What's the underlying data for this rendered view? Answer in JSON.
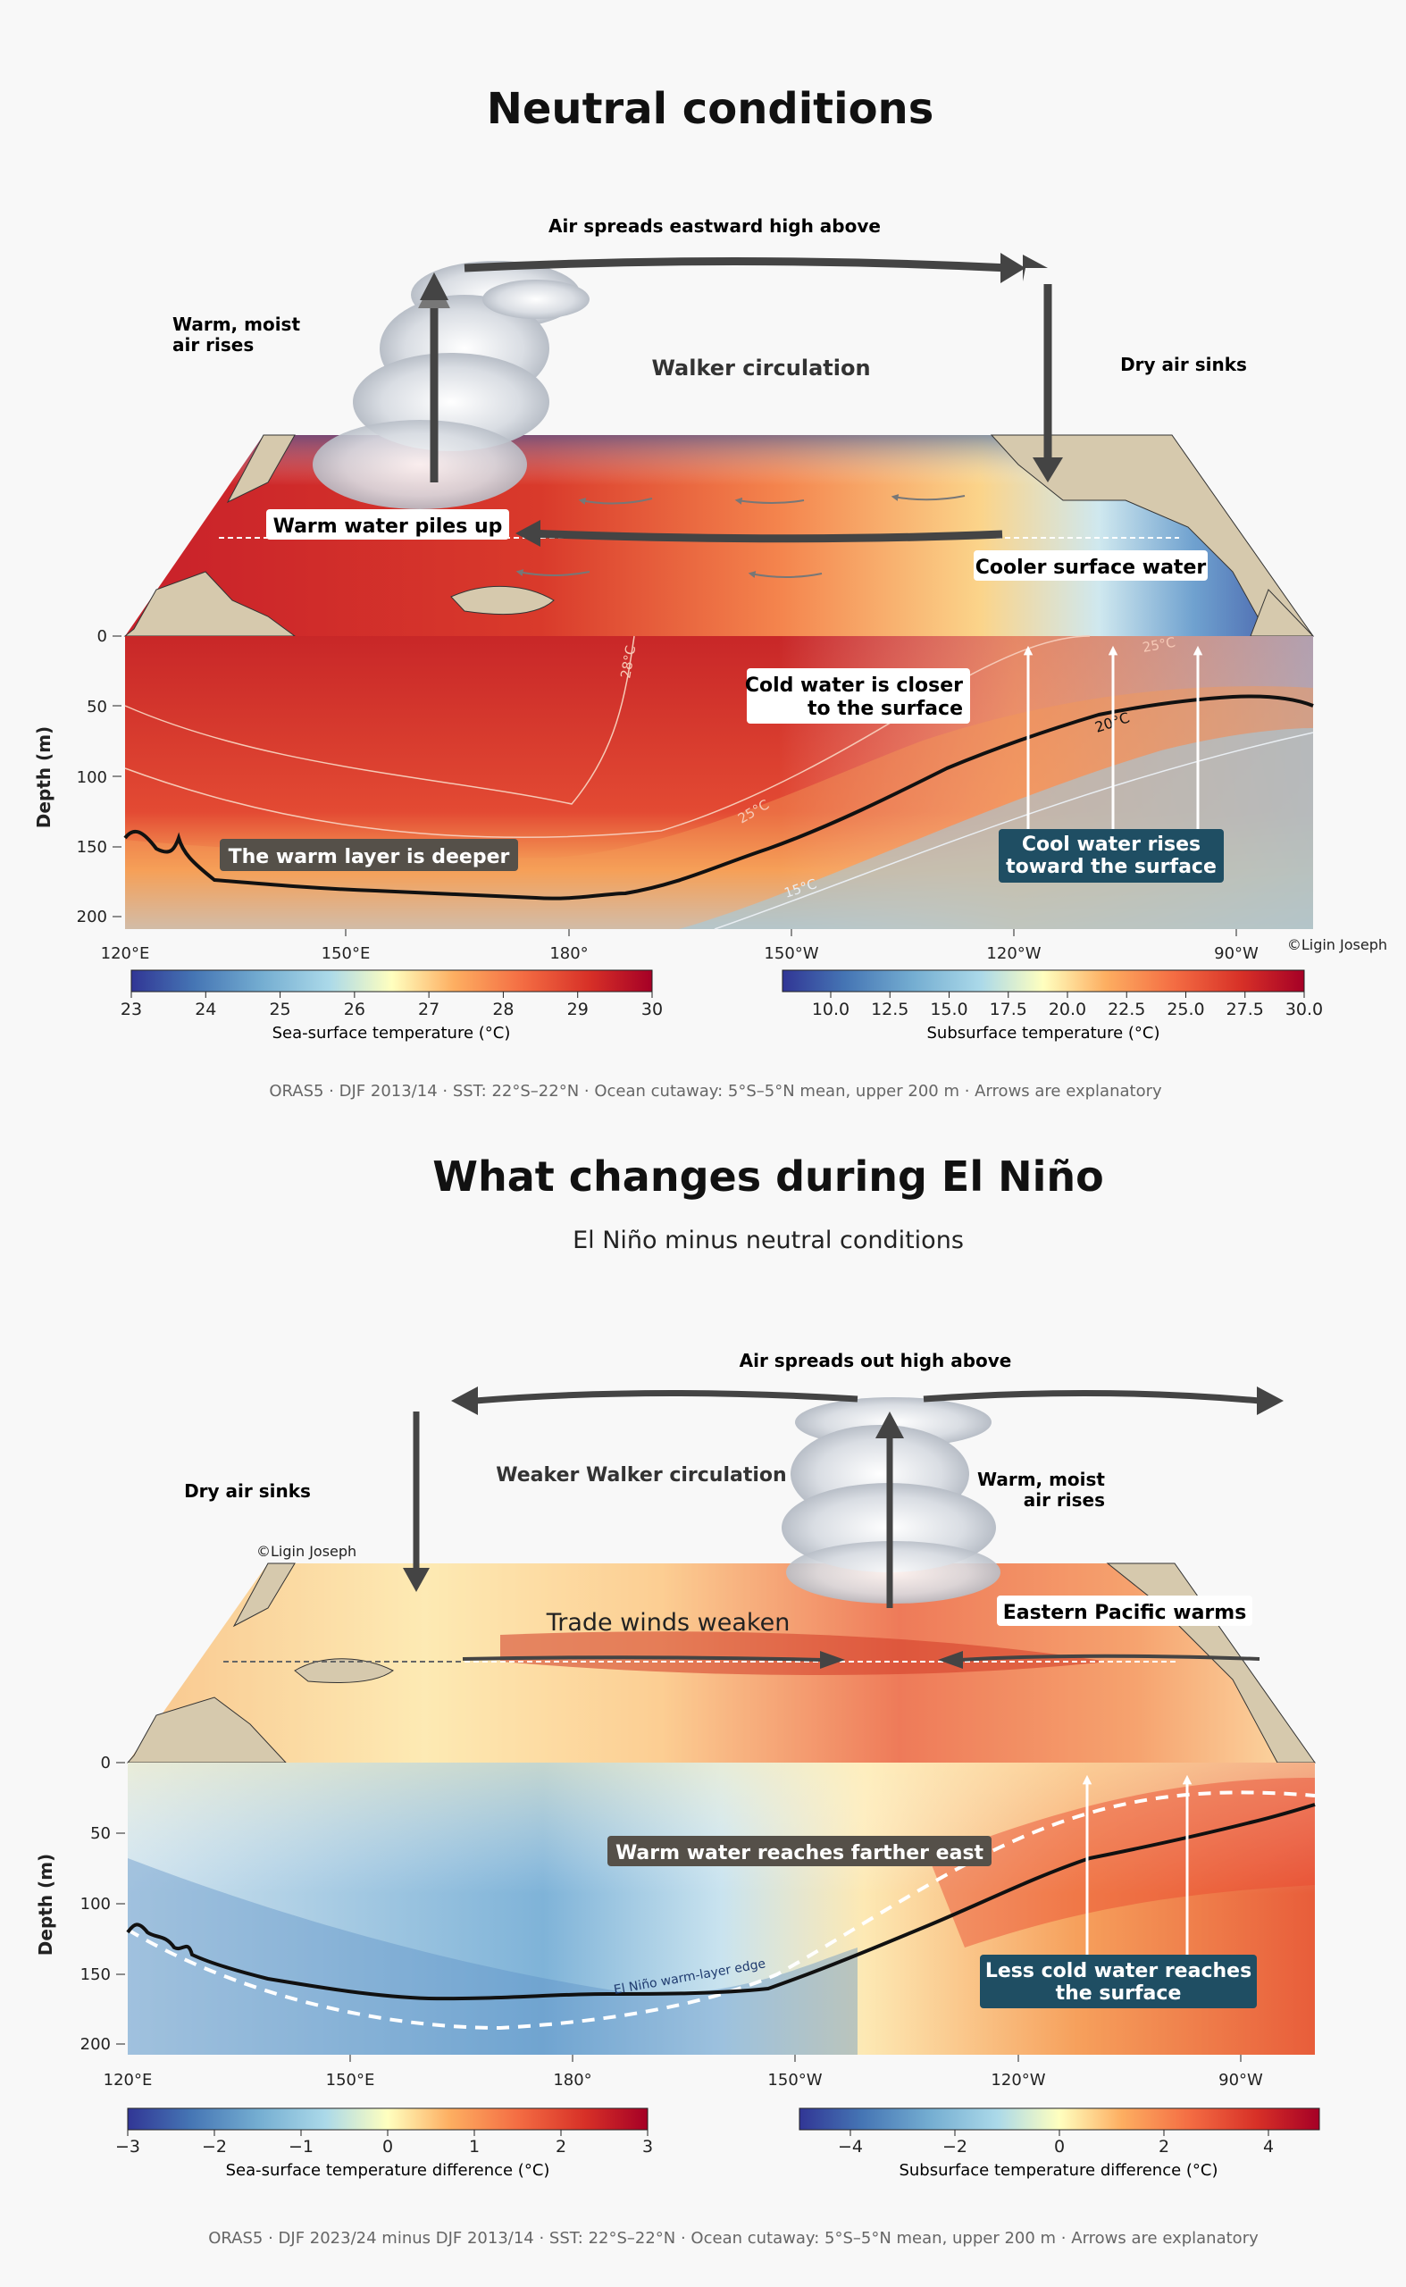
{
  "neutral": {
    "title": "Neutral conditions",
    "air_top": "Air spreads eastward high above",
    "warm_moist_1": "Warm, moist",
    "warm_moist_2": "air rises",
    "walker": "Walker circulation",
    "dry_air": "Dry air sinks",
    "warm_piles": "Warm water piles up",
    "cooler_surface": "Cooler surface water",
    "cold_closer_1": "Cold water is closer",
    "cold_closer_2": "to the surface",
    "warm_layer": "The warm layer is deeper",
    "cool_rises_1": "Cool water rises",
    "cool_rises_2": "toward the surface",
    "contours": [
      "28°C",
      "25°C",
      "25°C",
      "20°C",
      "15°C"
    ],
    "copyright": "©Ligin Joseph",
    "depth_label": "Depth (m)",
    "depth_ticks": [
      "0",
      "50",
      "100",
      "150",
      "200"
    ],
    "lon_ticks": [
      "120°E",
      "150°E",
      "180°",
      "150°W",
      "120°W",
      "90°W"
    ],
    "cbar_sst": {
      "label": "Sea-surface temperature (°C)",
      "ticks": [
        "23",
        "24",
        "25",
        "26",
        "27",
        "28",
        "29",
        "30"
      ]
    },
    "cbar_sub": {
      "label": "Subsurface temperature (°C)",
      "ticks": [
        "10.0",
        "12.5",
        "15.0",
        "17.5",
        "20.0",
        "22.5",
        "25.0",
        "27.5",
        "30.0"
      ]
    },
    "caption": "ORAS5 · DJF 2013/14 · SST: 22°S–22°N · Ocean cutaway: 5°S–5°N mean, upper 200 m · Arrows are explanatory"
  },
  "elnino": {
    "title": "What changes during El Niño",
    "subtitle": "El Niño minus neutral conditions",
    "air_top": "Air spreads out high above",
    "dry_air": "Dry air sinks",
    "walker": "Weaker Walker circulation",
    "warm_moist_1": "Warm, moist",
    "warm_moist_2": "air rises",
    "copyright": "©Ligin Joseph",
    "trade": "Trade winds weaken",
    "east_warms": "Eastern Pacific warms",
    "warm_reaches": "Warm water reaches farther east",
    "edge_label": "El Niño warm-layer edge",
    "less_cold_1": "Less cold water reaches",
    "less_cold_2": "the surface",
    "depth_label": "Depth (m)",
    "depth_ticks": [
      "0",
      "50",
      "100",
      "150",
      "200"
    ],
    "lon_ticks": [
      "120°E",
      "150°E",
      "180°",
      "150°W",
      "120°W",
      "90°W"
    ],
    "cbar_sst": {
      "label": "Sea-surface temperature difference (°C)",
      "ticks": [
        "−3",
        "−2",
        "−1",
        "0",
        "1",
        "2",
        "3"
      ]
    },
    "cbar_sub": {
      "label": "Subsurface temperature difference (°C)",
      "ticks": [
        "−4",
        "−2",
        "0",
        "2",
        "4"
      ]
    },
    "caption": "ORAS5 · DJF 2023/24 minus DJF 2013/14 · SST: 22°S–22°N · Ocean cutaway: 5°S–5°N mean, upper 200 m · Arrows are explanatory"
  },
  "colors": {
    "arrow": "#444444",
    "label_dark_bg": "#555049",
    "label_teal_bg": "#1f4e63",
    "thermocline": "#111111",
    "land": "#d6c9ad"
  }
}
